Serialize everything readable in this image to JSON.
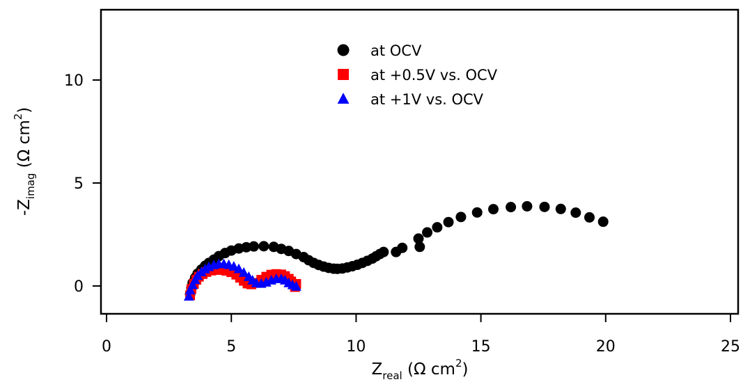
{
  "chart_data": {
    "type": "scatter",
    "xlabel": {
      "main": "Z",
      "sub": "real",
      "unit_pre": " (Ω cm",
      "sup": "2",
      "unit_post": ")"
    },
    "ylabel": {
      "main": "-Z",
      "sub": "imag",
      "unit_pre": " (Ω cm",
      "sup": "2",
      "unit_post": ")"
    },
    "xlim": [
      0,
      25
    ],
    "ylim": [
      -1.4,
      13.4
    ],
    "xticks": [
      0,
      5,
      10,
      15,
      20,
      25
    ],
    "yticks": [
      0,
      5,
      10
    ],
    "grid": false,
    "legend_position": "top-center",
    "series": [
      {
        "name": "at OCV",
        "marker": "circle",
        "color": "#000000",
        "points": [
          [
            3.35,
            -0.4
          ],
          [
            3.4,
            -0.1
          ],
          [
            3.45,
            0.15
          ],
          [
            3.55,
            0.4
          ],
          [
            3.65,
            0.6
          ],
          [
            3.8,
            0.8
          ],
          [
            3.95,
            0.98
          ],
          [
            4.1,
            1.12
          ],
          [
            4.3,
            1.28
          ],
          [
            4.5,
            1.45
          ],
          [
            4.75,
            1.6
          ],
          [
            5.0,
            1.72
          ],
          [
            5.3,
            1.82
          ],
          [
            5.6,
            1.88
          ],
          [
            5.9,
            1.92
          ],
          [
            6.3,
            1.93
          ],
          [
            6.7,
            1.9
          ],
          [
            7.0,
            1.8
          ],
          [
            7.3,
            1.7
          ],
          [
            7.6,
            1.55
          ],
          [
            7.9,
            1.4
          ],
          [
            8.1,
            1.25
          ],
          [
            8.3,
            1.12
          ],
          [
            8.5,
            1.02
          ],
          [
            8.7,
            0.94
          ],
          [
            8.9,
            0.88
          ],
          [
            9.1,
            0.84
          ],
          [
            9.25,
            0.83
          ],
          [
            9.45,
            0.85
          ],
          [
            9.65,
            0.9
          ],
          [
            9.85,
            0.96
          ],
          [
            10.05,
            1.03
          ],
          [
            10.25,
            1.12
          ],
          [
            10.45,
            1.22
          ],
          [
            10.65,
            1.33
          ],
          [
            10.8,
            1.44
          ],
          [
            10.95,
            1.55
          ],
          [
            11.1,
            1.65
          ],
          [
            11.6,
            1.65
          ],
          [
            11.85,
            1.85
          ],
          [
            12.5,
            2.3
          ],
          [
            12.55,
            1.9
          ],
          [
            12.85,
            2.6
          ],
          [
            13.25,
            2.85
          ],
          [
            13.7,
            3.1
          ],
          [
            14.2,
            3.35
          ],
          [
            14.85,
            3.57
          ],
          [
            15.5,
            3.73
          ],
          [
            16.2,
            3.83
          ],
          [
            16.85,
            3.87
          ],
          [
            17.55,
            3.84
          ],
          [
            18.2,
            3.74
          ],
          [
            18.8,
            3.56
          ],
          [
            19.35,
            3.33
          ],
          [
            19.9,
            3.12
          ]
        ]
      },
      {
        "name": "at +0.5V vs. OCV",
        "marker": "square",
        "color": "#ff0000",
        "points": [
          [
            3.35,
            -0.45
          ],
          [
            3.4,
            -0.15
          ],
          [
            3.5,
            0.1
          ],
          [
            3.6,
            0.3
          ],
          [
            3.7,
            0.45
          ],
          [
            3.85,
            0.58
          ],
          [
            4.0,
            0.68
          ],
          [
            4.2,
            0.75
          ],
          [
            4.4,
            0.78
          ],
          [
            4.6,
            0.78
          ],
          [
            4.8,
            0.74
          ],
          [
            5.0,
            0.67
          ],
          [
            5.2,
            0.55
          ],
          [
            5.35,
            0.4
          ],
          [
            5.5,
            0.25
          ],
          [
            5.65,
            0.12
          ],
          [
            5.8,
            0.08
          ],
          [
            6.0,
            0.15
          ],
          [
            6.2,
            0.3
          ],
          [
            6.4,
            0.45
          ],
          [
            6.6,
            0.55
          ],
          [
            6.8,
            0.58
          ],
          [
            7.0,
            0.56
          ],
          [
            7.15,
            0.48
          ],
          [
            7.3,
            0.35
          ],
          [
            7.4,
            0.22
          ],
          [
            7.5,
            0.1
          ],
          [
            7.55,
            -0.05
          ],
          [
            7.6,
            0.1
          ]
        ]
      },
      {
        "name": "at +1V vs. OCV",
        "marker": "triangle",
        "color": "#0000ff",
        "points": [
          [
            3.3,
            -0.5
          ],
          [
            3.35,
            -0.2
          ],
          [
            3.45,
            0.05
          ],
          [
            3.55,
            0.3
          ],
          [
            3.65,
            0.5
          ],
          [
            3.8,
            0.68
          ],
          [
            3.95,
            0.82
          ],
          [
            4.1,
            0.93
          ],
          [
            4.3,
            1.02
          ],
          [
            4.5,
            1.07
          ],
          [
            4.7,
            1.07
          ],
          [
            4.9,
            1.03
          ],
          [
            5.1,
            0.95
          ],
          [
            5.3,
            0.83
          ],
          [
            5.5,
            0.65
          ],
          [
            5.7,
            0.45
          ],
          [
            5.85,
            0.28
          ],
          [
            6.0,
            0.15
          ],
          [
            6.2,
            0.12
          ],
          [
            6.4,
            0.18
          ],
          [
            6.6,
            0.28
          ],
          [
            6.8,
            0.35
          ],
          [
            7.0,
            0.35
          ],
          [
            7.15,
            0.28
          ],
          [
            7.3,
            0.15
          ],
          [
            7.45,
            0.05
          ],
          [
            7.6,
            -0.02
          ]
        ]
      }
    ]
  }
}
